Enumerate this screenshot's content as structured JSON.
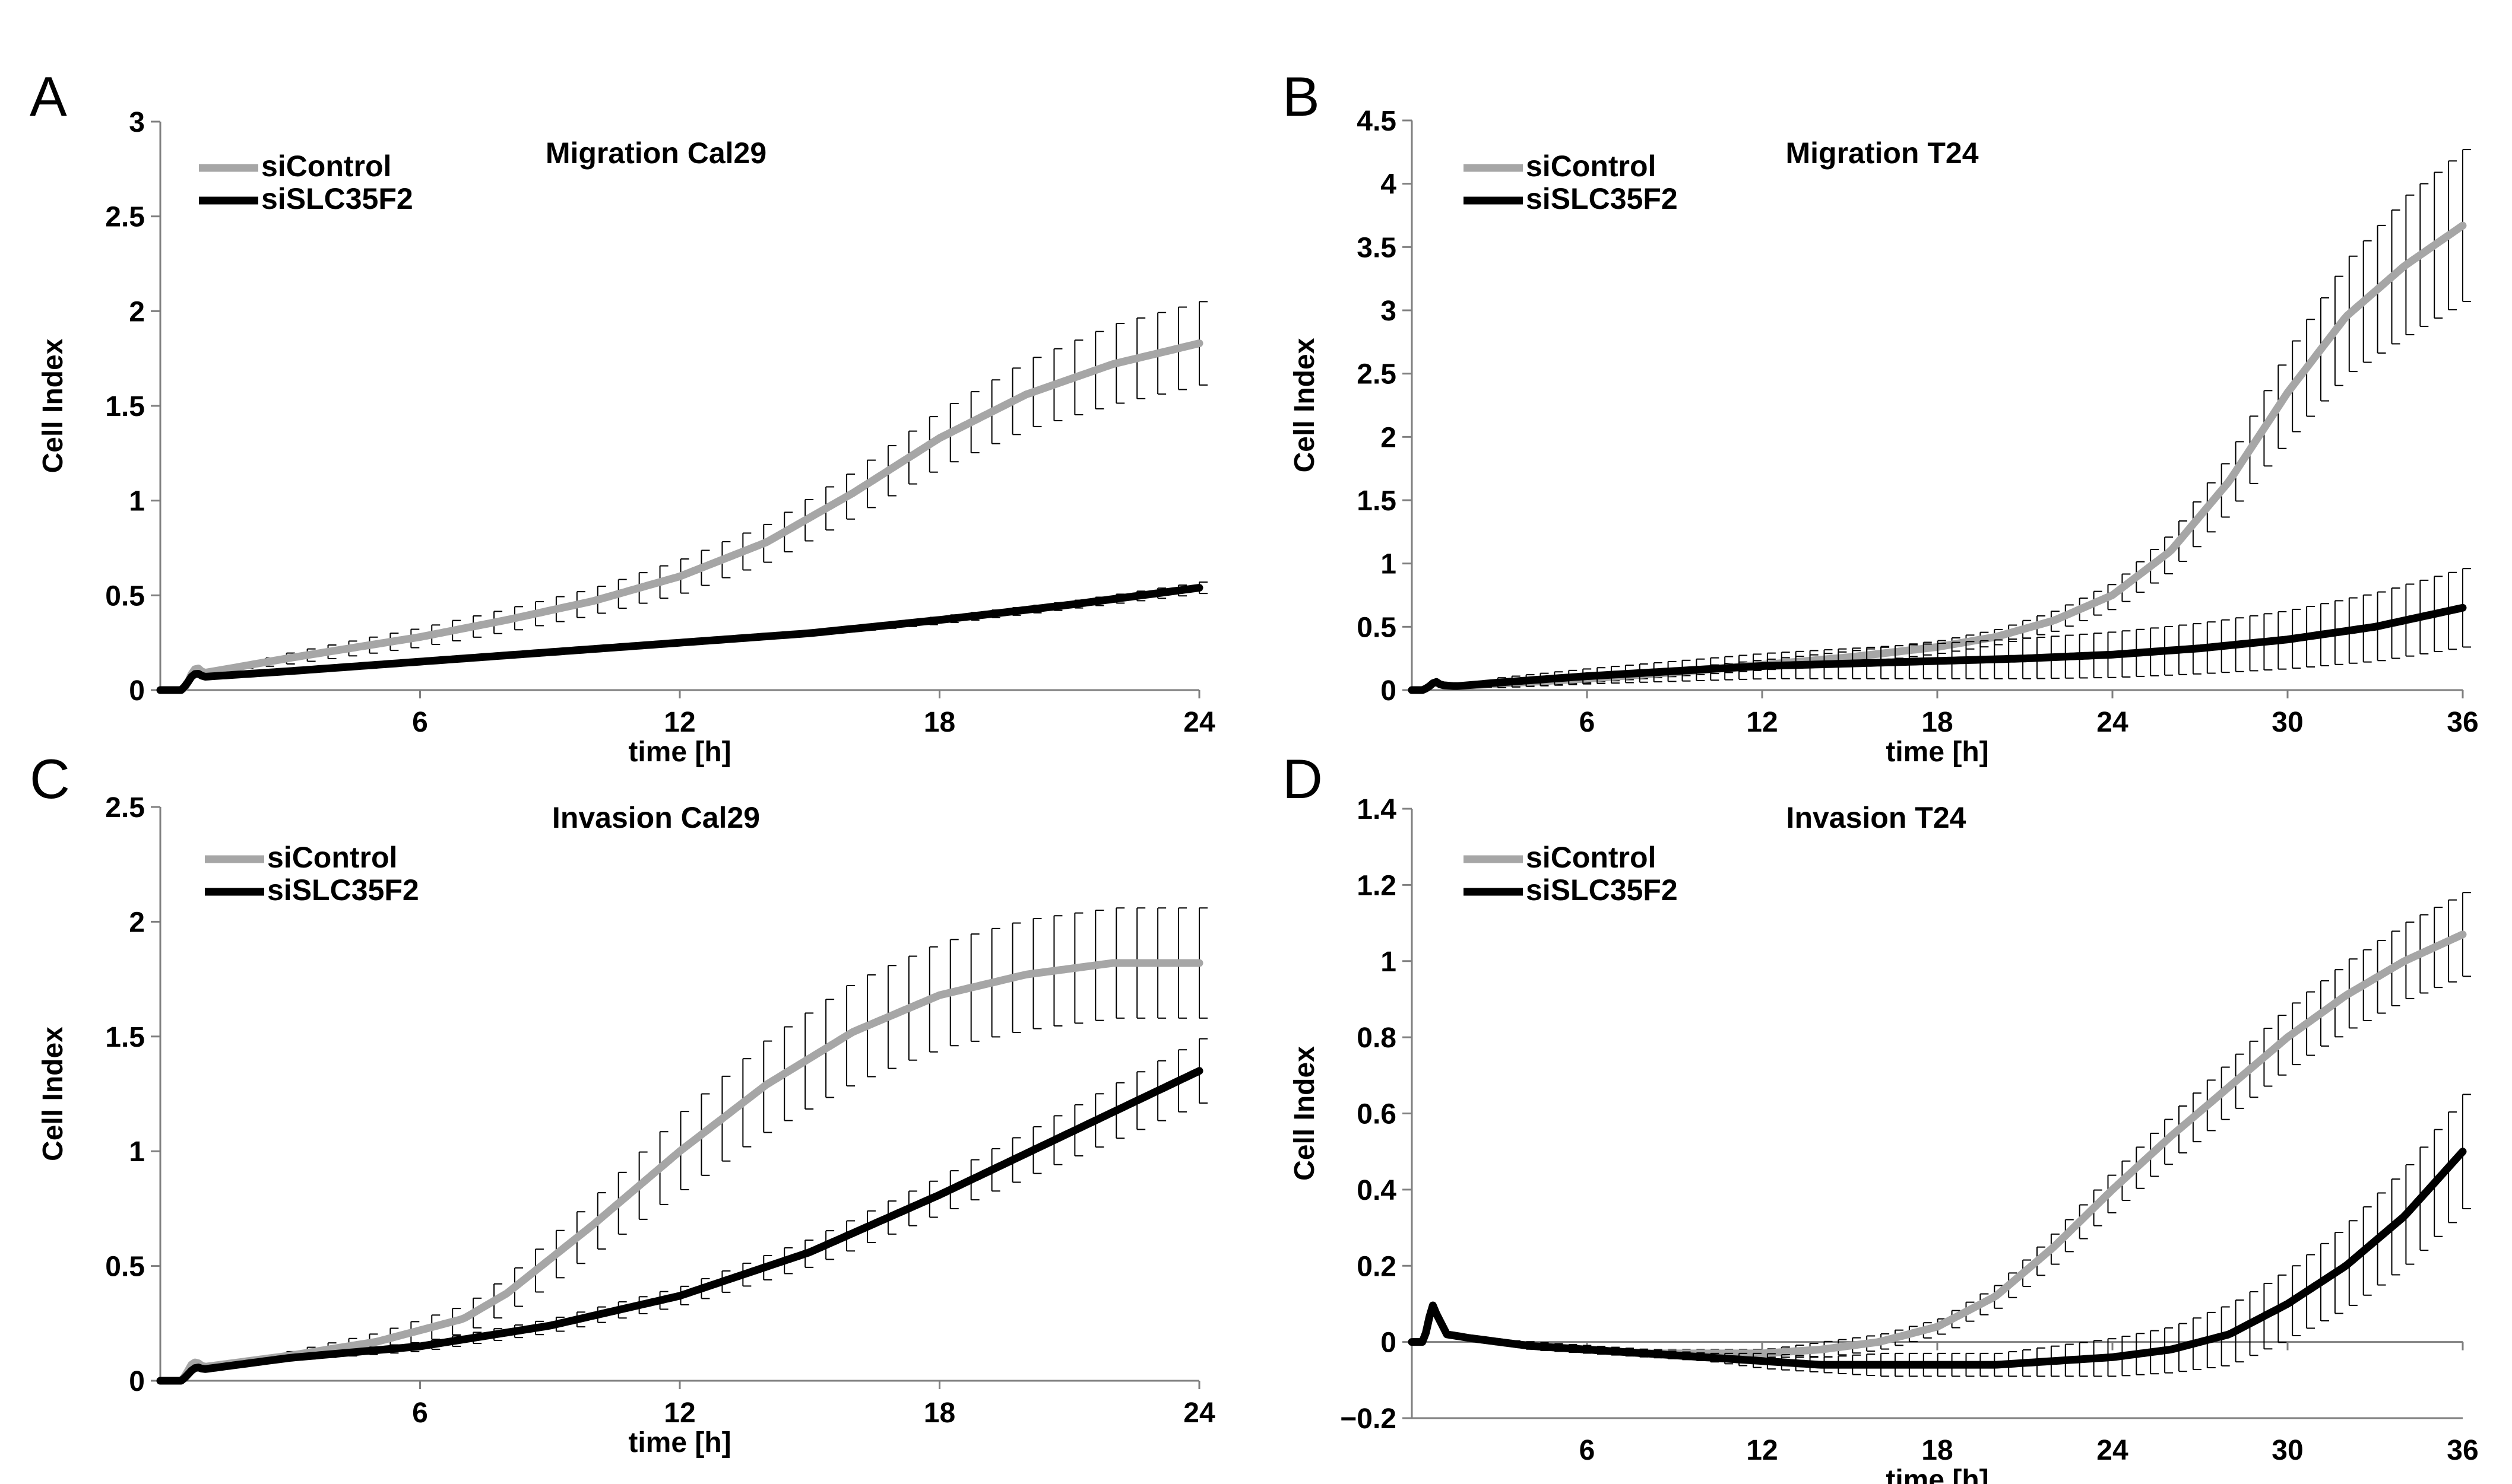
{
  "figure": {
    "panels": [
      "A",
      "B",
      "C",
      "D"
    ]
  },
  "chart_data": [
    {
      "panel": "A",
      "type": "line",
      "title": "Migration Cal29",
      "xlabel": "time [h]",
      "ylabel": "Cell Index",
      "xlim": [
        0,
        24
      ],
      "ylim": [
        0,
        3
      ],
      "xticks": [
        6,
        12,
        18,
        24
      ],
      "xtick_labels": [
        "6",
        "12",
        "18",
        "24"
      ],
      "yticks": [
        0,
        0.5,
        1,
        1.5,
        2,
        2.5,
        3
      ],
      "ytick_labels": [
        "0",
        "0.5",
        "1",
        "1.5",
        "2",
        "2.5",
        "3"
      ],
      "zero_line": false,
      "legend_position": "top-left",
      "series": [
        {
          "name": "siControl",
          "color": "#a6a6a6",
          "x": [
            0,
            0.5,
            0.6,
            0.75,
            0.85,
            1,
            3,
            6,
            8,
            10,
            12,
            14,
            16,
            18,
            20,
            22,
            24
          ],
          "y": [
            0,
            0,
            0.02,
            0.1,
            0.12,
            0.09,
            0.17,
            0.28,
            0.37,
            0.47,
            0.6,
            0.78,
            1.04,
            1.33,
            1.56,
            1.72,
            1.83
          ],
          "err": [
            0,
            0,
            0,
            0,
            0,
            0,
            0.03,
            0.05,
            0.06,
            0.07,
            0.09,
            0.1,
            0.12,
            0.15,
            0.18,
            0.21,
            0.22
          ]
        },
        {
          "name": "siSLC35F2",
          "color": "#000000",
          "x": [
            0,
            0.5,
            0.6,
            0.75,
            0.85,
            1,
            3,
            6,
            9,
            12,
            15,
            18,
            21,
            24
          ],
          "y": [
            0,
            0,
            0.03,
            0.08,
            0.09,
            0.07,
            0.1,
            0.15,
            0.2,
            0.25,
            0.3,
            0.37,
            0.45,
            0.54
          ],
          "err": [
            0,
            0,
            0,
            0,
            0,
            0,
            0.01,
            0.01,
            0.01,
            0.01,
            0.01,
            0.02,
            0.02,
            0.03
          ]
        }
      ]
    },
    {
      "panel": "B",
      "type": "line",
      "title": "Migration T24",
      "xlabel": "time [h]",
      "ylabel": "Cell Index",
      "xlim": [
        0,
        36
      ],
      "ylim": [
        0,
        4.5
      ],
      "xticks": [
        6,
        12,
        18,
        24,
        30,
        36
      ],
      "xtick_labels": [
        "6",
        "12",
        "18",
        "24",
        "30",
        "36"
      ],
      "yticks": [
        0,
        0.5,
        1,
        1.5,
        2,
        2.5,
        3,
        3.5,
        4,
        4.5
      ],
      "ytick_labels": [
        "0",
        "0.5",
        "1",
        "1.5",
        "2",
        "2.5",
        "3",
        "3.5",
        "4",
        "4.5"
      ],
      "zero_line": false,
      "legend_position": "top-left",
      "series": [
        {
          "name": "siControl",
          "color": "#a6a6a6",
          "x": [
            0,
            0.4,
            0.6,
            0.8,
            1,
            1.5,
            3,
            6,
            9,
            12,
            15,
            18,
            20,
            22,
            24,
            26,
            28,
            30,
            32,
            34,
            36
          ],
          "y": [
            0,
            0,
            0.03,
            0.07,
            0.04,
            0.03,
            0.05,
            0.09,
            0.14,
            0.2,
            0.26,
            0.34,
            0.42,
            0.55,
            0.75,
            1.1,
            1.65,
            2.35,
            2.95,
            3.35,
            3.67
          ],
          "err": [
            0,
            0,
            0,
            0,
            0,
            0,
            0.03,
            0.03,
            0.03,
            0.04,
            0.05,
            0.05,
            0.06,
            0.08,
            0.1,
            0.15,
            0.22,
            0.35,
            0.45,
            0.55,
            0.6
          ]
        },
        {
          "name": "siSLC35F2",
          "color": "#000000",
          "x": [
            0,
            0.4,
            0.6,
            0.8,
            1,
            1.5,
            3,
            6,
            9,
            12,
            15,
            18,
            21,
            24,
            27,
            30,
            33,
            36
          ],
          "y": [
            0,
            0,
            0.03,
            0.07,
            0.04,
            0.03,
            0.06,
            0.11,
            0.15,
            0.19,
            0.21,
            0.23,
            0.25,
            0.28,
            0.33,
            0.4,
            0.5,
            0.65
          ],
          "err": [
            0,
            0,
            0,
            0,
            0,
            0,
            0.04,
            0.06,
            0.08,
            0.1,
            0.12,
            0.14,
            0.16,
            0.18,
            0.2,
            0.23,
            0.27,
            0.31
          ]
        }
      ]
    },
    {
      "panel": "C",
      "type": "line",
      "title": "Invasion Cal29",
      "xlabel": "time [h]",
      "ylabel": "Cell Index",
      "xlim": [
        0,
        24
      ],
      "ylim": [
        0,
        2.5
      ],
      "xticks": [
        6,
        12,
        18,
        24
      ],
      "xtick_labels": [
        "6",
        "12",
        "18",
        "24"
      ],
      "yticks": [
        0,
        0.5,
        1,
        1.5,
        2,
        2.5
      ],
      "ytick_labels": [
        "0",
        "0.5",
        "1",
        "1.5",
        "2",
        "2.5"
      ],
      "zero_line": false,
      "legend_position": "top-left",
      "series": [
        {
          "name": "siControl",
          "color": "#a6a6a6",
          "x": [
            0,
            0.5,
            0.6,
            0.75,
            0.85,
            1,
            3,
            5,
            7,
            8,
            10,
            12,
            14,
            16,
            18,
            20,
            22,
            24
          ],
          "y": [
            0,
            0,
            0.03,
            0.08,
            0.08,
            0.06,
            0.11,
            0.17,
            0.27,
            0.38,
            0.68,
            1.0,
            1.29,
            1.52,
            1.68,
            1.77,
            1.82,
            1.82
          ],
          "err": [
            0,
            0,
            0,
            0,
            0,
            0,
            0.02,
            0.04,
            0.06,
            0.08,
            0.12,
            0.17,
            0.2,
            0.22,
            0.23,
            0.24,
            0.24,
            0.24
          ]
        },
        {
          "name": "siSLC35F2",
          "color": "#000000",
          "x": [
            0,
            0.5,
            0.6,
            0.75,
            0.85,
            1,
            3,
            6,
            9,
            12,
            15,
            18,
            21,
            24
          ],
          "y": [
            0,
            0,
            0.02,
            0.05,
            0.06,
            0.05,
            0.1,
            0.15,
            0.24,
            0.37,
            0.56,
            0.81,
            1.08,
            1.35
          ],
          "err": [
            0,
            0,
            0,
            0,
            0,
            0,
            0.01,
            0.02,
            0.03,
            0.04,
            0.06,
            0.08,
            0.11,
            0.14
          ]
        }
      ]
    },
    {
      "panel": "D",
      "type": "line",
      "title": "Invasion T24",
      "xlabel": "time [h]",
      "ylabel": "Cell Index",
      "xlim": [
        0,
        36
      ],
      "ylim": [
        -0.2,
        1.4
      ],
      "xticks": [
        6,
        12,
        18,
        24,
        30,
        36
      ],
      "xtick_labels": [
        "6",
        "12",
        "18",
        "24",
        "30",
        "36"
      ],
      "yticks": [
        -0.2,
        0,
        0.2,
        0.4,
        0.6,
        0.8,
        1,
        1.2,
        1.4
      ],
      "ytick_labels": [
        "−0.2",
        "0",
        "0.2",
        "0.4",
        "0.6",
        "0.8",
        "1",
        "1.2",
        "1.4"
      ],
      "zero_line": true,
      "legend_position": "top-left",
      "series": [
        {
          "name": "siControl",
          "color": "#a6a6a6",
          "x": [
            0,
            0.4,
            0.5,
            0.7,
            0.8,
            1.2,
            2,
            4,
            6,
            8,
            10,
            12,
            14,
            16,
            18,
            20,
            22,
            24,
            26,
            28,
            30,
            32,
            34,
            36
          ],
          "y": [
            0,
            0,
            0.03,
            0.1,
            0.08,
            0.02,
            0.01,
            -0.01,
            -0.02,
            -0.03,
            -0.03,
            -0.03,
            -0.02,
            0,
            0.04,
            0.12,
            0.25,
            0.4,
            0.54,
            0.67,
            0.8,
            0.91,
            1.0,
            1.07
          ],
          "err": [
            0,
            0,
            0,
            0,
            0,
            0,
            0,
            0.01,
            0.01,
            0.01,
            0.01,
            0.01,
            0.02,
            0.02,
            0.02,
            0.03,
            0.04,
            0.05,
            0.06,
            0.07,
            0.08,
            0.09,
            0.1,
            0.11
          ]
        },
        {
          "name": "siSLC35F2",
          "color": "#000000",
          "x": [
            0,
            0.4,
            0.5,
            0.7,
            0.8,
            1.2,
            2,
            4,
            6,
            8,
            10,
            12,
            14,
            16,
            18,
            20,
            22,
            24,
            26,
            28,
            30,
            32,
            34,
            36
          ],
          "y": [
            0,
            0,
            0.03,
            0.1,
            0.08,
            0.02,
            0.01,
            -0.01,
            -0.02,
            -0.03,
            -0.04,
            -0.05,
            -0.06,
            -0.06,
            -0.06,
            -0.06,
            -0.05,
            -0.04,
            -0.02,
            0.02,
            0.1,
            0.2,
            0.33,
            0.5
          ],
          "err": [
            0,
            0,
            0,
            0,
            0,
            0,
            0,
            0.01,
            0.01,
            0.01,
            0.01,
            0.02,
            0.02,
            0.03,
            0.03,
            0.03,
            0.04,
            0.05,
            0.06,
            0.08,
            0.09,
            0.11,
            0.13,
            0.15
          ]
        }
      ]
    }
  ]
}
